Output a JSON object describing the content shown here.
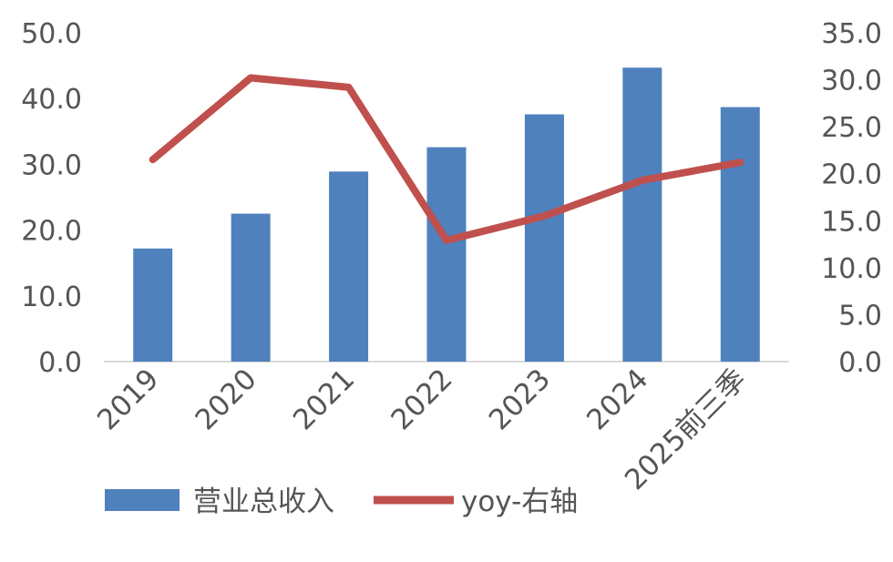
{
  "chart_data": {
    "type": "bar",
    "categories": [
      "2019",
      "2020",
      "2021",
      "2022",
      "2023",
      "2024",
      "2025前三季"
    ],
    "series": [
      {
        "name": "营业总收入",
        "type": "bar",
        "axis": "left",
        "color": "#4F81BD",
        "values": [
          17.2,
          22.5,
          28.9,
          32.6,
          37.6,
          44.7,
          38.7
        ]
      },
      {
        "name": "yoy-右轴",
        "type": "line",
        "axis": "right",
        "color": "#C0504D",
        "values": [
          21.5,
          30.2,
          29.2,
          12.9,
          15.5,
          19.3,
          21.2
        ]
      }
    ],
    "y_left": {
      "min": 0,
      "max": 50,
      "step": 10,
      "tick_labels": [
        "0.0",
        "10.0",
        "20.0",
        "30.0",
        "40.0",
        "50.0"
      ]
    },
    "y_right": {
      "min": 0,
      "max": 35,
      "step": 5,
      "tick_labels": [
        "0.0",
        "5.0",
        "10.0",
        "15.0",
        "20.0",
        "25.0",
        "30.0",
        "35.0"
      ]
    },
    "grid": false,
    "legend_position": "bottom-left"
  }
}
